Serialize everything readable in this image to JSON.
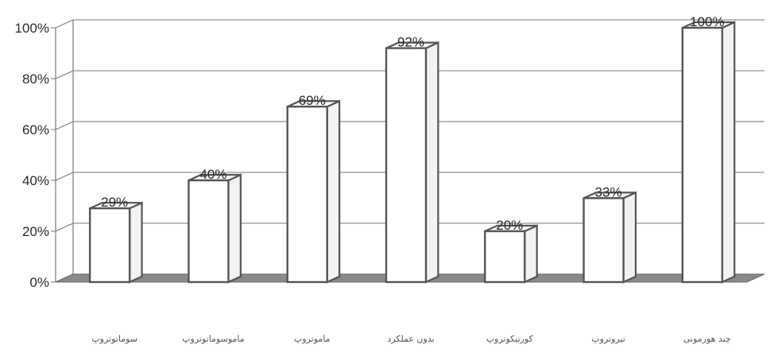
{
  "chart_data": {
    "type": "bar",
    "categories": [
      "سوماتوتروپ",
      "ماموسوماتوتروپ",
      "ماموتروپ",
      "بدون عملکرد",
      "کورتیکوتروپ",
      "تیروتروپ",
      "چند هورمونی"
    ],
    "values": [
      29,
      40,
      69,
      92,
      20,
      33,
      100
    ],
    "data_labels": [
      "29%",
      "40%",
      "69%",
      "92%",
      "20%",
      "33%",
      "100%"
    ],
    "y_tick_labels": [
      "0%",
      "20%",
      "40%",
      "60%",
      "80%",
      "100%"
    ],
    "ylim": [
      0,
      100
    ],
    "grid": true,
    "three_d": true,
    "legend": "none",
    "title": "",
    "xlabel": "",
    "ylabel": "",
    "colors": {
      "bar_fill": "#ffffff",
      "bar_stroke": "#555555",
      "floor": "#8a8a8a",
      "grid": "#777777"
    }
  }
}
